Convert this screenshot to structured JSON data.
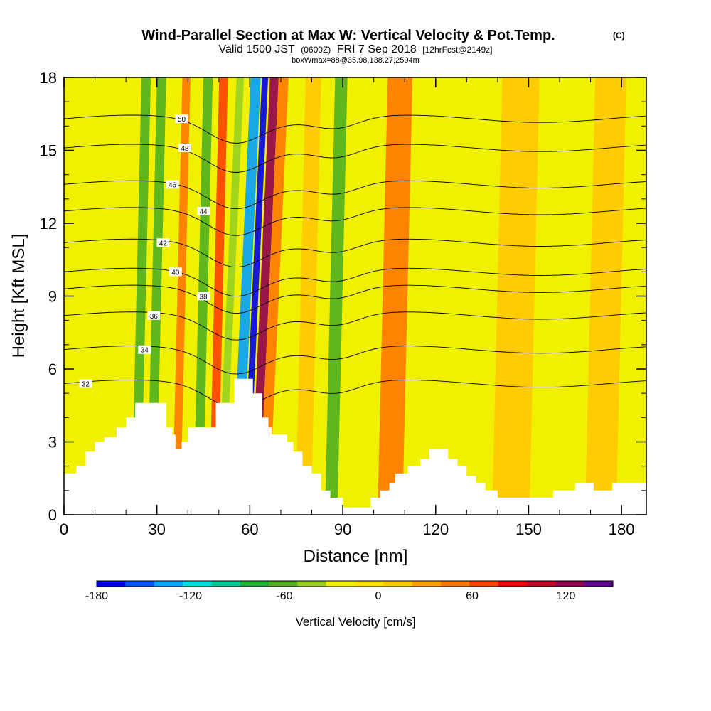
{
  "chart_data": {
    "type": "heatmap",
    "title": "Wind-Parallel Section at Max W: Vertical Velocity & Pot.Temp.",
    "title_mark": "(C)",
    "subtitle_parts": [
      "Valid 1500 JST",
      "(0600Z)",
      "FRI 7 Sep 2018",
      "[12hrFcst@2149z]"
    ],
    "subtitle2": "boxWmax=88@35.98,138.27,2594m",
    "xlabel": "Distance [nm]",
    "ylabel": "Height [Kft MSL]",
    "xlim": [
      0,
      188
    ],
    "ylim": [
      0,
      18
    ],
    "x_ticks": [
      0,
      30,
      60,
      90,
      120,
      150,
      180
    ],
    "y_ticks": [
      0,
      3,
      6,
      9,
      12,
      15,
      18
    ],
    "colorbar": {
      "title": "Vertical Velocity [cm/s]",
      "labeled_ticks": [
        -180,
        -120,
        -60,
        0,
        60,
        120
      ],
      "range": [
        -180,
        150
      ],
      "colors": [
        "#0000f0",
        "#0050ff",
        "#00a0ff",
        "#00e0e0",
        "#00c896",
        "#20b030",
        "#50b020",
        "#98d020",
        "#f0f000",
        "#ffe000",
        "#ffc800",
        "#ffa000",
        "#ff7800",
        "#ff4000",
        "#e80000",
        "#c00020",
        "#900050",
        "#600090"
      ]
    },
    "terrain": [
      [
        0,
        1.7
      ],
      [
        4,
        1.7
      ],
      [
        4,
        2.0
      ],
      [
        7,
        2.0
      ],
      [
        7,
        2.6
      ],
      [
        10,
        2.6
      ],
      [
        10,
        3.0
      ],
      [
        13,
        3.0
      ],
      [
        13,
        3.2
      ],
      [
        17,
        3.2
      ],
      [
        17,
        3.6
      ],
      [
        20,
        3.6
      ],
      [
        20,
        4.0
      ],
      [
        23,
        4.0
      ],
      [
        23,
        4.6
      ],
      [
        33,
        4.6
      ],
      [
        33,
        3.6
      ],
      [
        35,
        3.6
      ],
      [
        35,
        3.3
      ],
      [
        36,
        3.3
      ],
      [
        36,
        2.7
      ],
      [
        38,
        2.7
      ],
      [
        38,
        3.0
      ],
      [
        40,
        3.0
      ],
      [
        40,
        3.6
      ],
      [
        49,
        3.6
      ],
      [
        49,
        4.6
      ],
      [
        55,
        4.6
      ],
      [
        55,
        5.6
      ],
      [
        61,
        5.6
      ],
      [
        61,
        5.0
      ],
      [
        64,
        5.0
      ],
      [
        64,
        4.0
      ],
      [
        66,
        4.0
      ],
      [
        66,
        3.6
      ],
      [
        67,
        3.6
      ],
      [
        67,
        3.3
      ],
      [
        72,
        3.3
      ],
      [
        72,
        3.0
      ],
      [
        74,
        3.0
      ],
      [
        74,
        2.6
      ],
      [
        77,
        2.6
      ],
      [
        77,
        2.0
      ],
      [
        80,
        2.0
      ],
      [
        80,
        1.7
      ],
      [
        83,
        1.7
      ],
      [
        83,
        1.0
      ],
      [
        86,
        1.0
      ],
      [
        86,
        0.7
      ],
      [
        90,
        0.7
      ],
      [
        90,
        0.3
      ],
      [
        99,
        0.3
      ],
      [
        99,
        0.7
      ],
      [
        102,
        0.7
      ],
      [
        102,
        1.0
      ],
      [
        105,
        1.0
      ],
      [
        105,
        1.3
      ],
      [
        107,
        1.3
      ],
      [
        107,
        1.7
      ],
      [
        111,
        1.7
      ],
      [
        111,
        2.0
      ],
      [
        115,
        2.0
      ],
      [
        115,
        2.3
      ],
      [
        118,
        2.3
      ],
      [
        118,
        2.7
      ],
      [
        124,
        2.7
      ],
      [
        124,
        2.3
      ],
      [
        127,
        2.3
      ],
      [
        127,
        2.0
      ],
      [
        130,
        2.0
      ],
      [
        130,
        1.6
      ],
      [
        133,
        1.6
      ],
      [
        133,
        1.3
      ],
      [
        136,
        1.3
      ],
      [
        136,
        1.0
      ],
      [
        140,
        1.0
      ],
      [
        140,
        0.7
      ],
      [
        158,
        0.7
      ],
      [
        158,
        1.0
      ],
      [
        165,
        1.0
      ],
      [
        165,
        1.3
      ],
      [
        171,
        1.3
      ],
      [
        171,
        1.0
      ],
      [
        177,
        1.0
      ],
      [
        177,
        1.3
      ],
      [
        188,
        1.3
      ]
    ],
    "velocity_bands": [
      {
        "x": 24,
        "w": 1.5,
        "value": -60
      },
      {
        "x": 29,
        "w": 1.5,
        "value": -60
      },
      {
        "x": 37,
        "w": 1.3,
        "value": 40
      },
      {
        "x": 44,
        "w": 1.5,
        "value": -60
      },
      {
        "x": 49,
        "w": 1.4,
        "value": 60
      },
      {
        "x": 52,
        "w": 1.2,
        "value": -40
      },
      {
        "x": 57,
        "w": 1.6,
        "value": -140
      },
      {
        "x": 60,
        "w": 1.0,
        "value": -180
      },
      {
        "x": 63,
        "w": 1.4,
        "value": 120
      },
      {
        "x": 66,
        "w": 1.6,
        "value": 40
      },
      {
        "x": 73,
        "w": 1.6,
        "value": -20
      },
      {
        "x": 78,
        "w": 2.5,
        "value": 20
      },
      {
        "x": 87,
        "w": 2.0,
        "value": -60
      },
      {
        "x": 106,
        "w": 4.0,
        "value": 40
      },
      {
        "x": 124,
        "w": 2.5,
        "value": -20
      },
      {
        "x": 145,
        "w": 6.0,
        "value": 20
      },
      {
        "x": 174,
        "w": 5.0,
        "value": 10
      }
    ],
    "theta_contours": [
      {
        "label": "32",
        "base": 5.4,
        "lx": 7,
        "ly": 5.4
      },
      {
        "label": "34",
        "base": 6.8,
        "lx": 26,
        "ly": 6.8
      },
      {
        "label": "36",
        "base": 8.2,
        "lx": 29,
        "ly": 8.2
      },
      {
        "label": "38",
        "base": 9.3,
        "lx": 45,
        "ly": 9.0
      },
      {
        "label": "40",
        "base": 10.0,
        "lx": 36,
        "ly": 10.0
      },
      {
        "label": "42",
        "base": 11.2,
        "lx": 32,
        "ly": 11.2
      },
      {
        "label": "44",
        "base": 12.5,
        "lx": 45,
        "ly": 12.5
      },
      {
        "label": "46",
        "base": 13.6,
        "lx": 35,
        "ly": 13.6
      },
      {
        "label": "48",
        "base": 15.1,
        "lx": 39,
        "ly": 15.1
      },
      {
        "label": "50",
        "base": 16.3,
        "lx": 38,
        "ly": 16.3
      }
    ]
  }
}
